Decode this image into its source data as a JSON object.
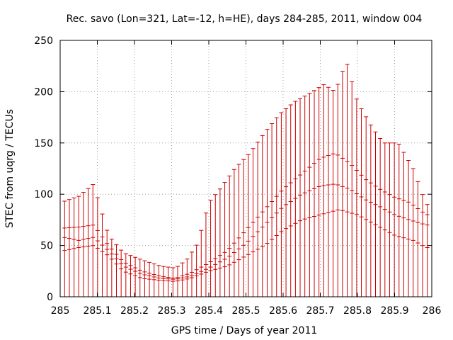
{
  "chart_data": {
    "type": "errorbar",
    "title": "Rec. savo (Lon=321, Lat=-12, h=HE), days 284-285, 2011, window 004",
    "xlabel": "GPS time / Days of year 2011",
    "ylabel": "STEC from uqrg / TECUs",
    "xlim": [
      285,
      286
    ],
    "ylim": [
      0,
      250
    ],
    "grid": true,
    "color": "#cc0000",
    "xticks": [
      285,
      285.1,
      285.2,
      285.3,
      285.4,
      285.5,
      285.6,
      285.7,
      285.8,
      285.9,
      286
    ],
    "xtick_labels": [
      "285",
      "285.1",
      "285.2",
      "285.3",
      "285.4",
      "285.5",
      "285.6",
      "285.7",
      "285.8",
      "285.9",
      "286"
    ],
    "yticks": [
      0,
      50,
      100,
      150,
      200,
      250
    ],
    "ytick_labels": [
      "0",
      "50",
      "100",
      "150",
      "200",
      "250"
    ],
    "anchors": {
      "upper": [
        [
          285.01,
          93
        ],
        [
          285.05,
          98
        ],
        [
          285.09,
          110
        ],
        [
          285.13,
          60
        ],
        [
          285.17,
          43
        ],
        [
          285.22,
          36
        ],
        [
          285.27,
          30
        ],
        [
          285.31,
          28
        ],
        [
          285.34,
          36
        ],
        [
          285.37,
          52
        ],
        [
          285.4,
          92
        ],
        [
          285.43,
          105
        ],
        [
          285.47,
          125
        ],
        [
          285.51,
          140
        ],
        [
          285.55,
          160
        ],
        [
          285.59,
          178
        ],
        [
          285.63,
          190
        ],
        [
          285.67,
          198
        ],
        [
          285.71,
          207
        ],
        [
          285.74,
          200
        ],
        [
          285.77,
          230
        ],
        [
          285.8,
          190
        ],
        [
          285.84,
          165
        ],
        [
          285.87,
          150
        ],
        [
          285.91,
          150
        ],
        [
          285.95,
          125
        ],
        [
          285.985,
          90
        ]
      ],
      "center_a": [
        [
          285.01,
          67
        ],
        [
          285.05,
          68
        ],
        [
          285.09,
          70
        ],
        [
          285.13,
          50
        ],
        [
          285.17,
          34
        ],
        [
          285.22,
          25
        ],
        [
          285.27,
          20
        ],
        [
          285.31,
          18
        ],
        [
          285.35,
          23
        ],
        [
          285.4,
          33
        ],
        [
          285.45,
          45
        ],
        [
          285.5,
          65
        ],
        [
          285.55,
          85
        ],
        [
          285.6,
          105
        ],
        [
          285.65,
          120
        ],
        [
          285.7,
          135
        ],
        [
          285.74,
          140
        ],
        [
          285.78,
          130
        ],
        [
          285.82,
          115
        ],
        [
          285.86,
          105
        ],
        [
          285.9,
          97
        ],
        [
          285.94,
          92
        ],
        [
          285.985,
          80
        ]
      ],
      "center_b": [
        [
          285.01,
          58
        ],
        [
          285.05,
          55
        ],
        [
          285.09,
          58
        ],
        [
          285.13,
          45
        ],
        [
          285.17,
          30
        ],
        [
          285.22,
          22
        ],
        [
          285.27,
          18
        ],
        [
          285.31,
          17
        ],
        [
          285.35,
          20
        ],
        [
          285.4,
          28
        ],
        [
          285.45,
          38
        ],
        [
          285.5,
          52
        ],
        [
          285.55,
          70
        ],
        [
          285.6,
          88
        ],
        [
          285.65,
          100
        ],
        [
          285.7,
          108
        ],
        [
          285.74,
          110
        ],
        [
          285.78,
          105
        ],
        [
          285.82,
          95
        ],
        [
          285.86,
          88
        ],
        [
          285.9,
          80
        ],
        [
          285.94,
          75
        ],
        [
          285.985,
          70
        ]
      ],
      "lower_err": [
        [
          285.01,
          45
        ],
        [
          285.05,
          48
        ],
        [
          285.09,
          50
        ],
        [
          285.13,
          40
        ],
        [
          285.17,
          25
        ],
        [
          285.22,
          18
        ],
        [
          285.27,
          16
        ],
        [
          285.31,
          15
        ],
        [
          285.35,
          18
        ],
        [
          285.4,
          25
        ],
        [
          285.45,
          30
        ],
        [
          285.5,
          40
        ],
        [
          285.55,
          50
        ],
        [
          285.6,
          65
        ],
        [
          285.65,
          75
        ],
        [
          285.7,
          80
        ],
        [
          285.75,
          85
        ],
        [
          285.8,
          80
        ],
        [
          285.85,
          70
        ],
        [
          285.9,
          60
        ],
        [
          285.95,
          55
        ],
        [
          285.985,
          48
        ]
      ]
    },
    "sample_count": 78,
    "x_start": 285.012,
    "x_end": 285.988
  }
}
